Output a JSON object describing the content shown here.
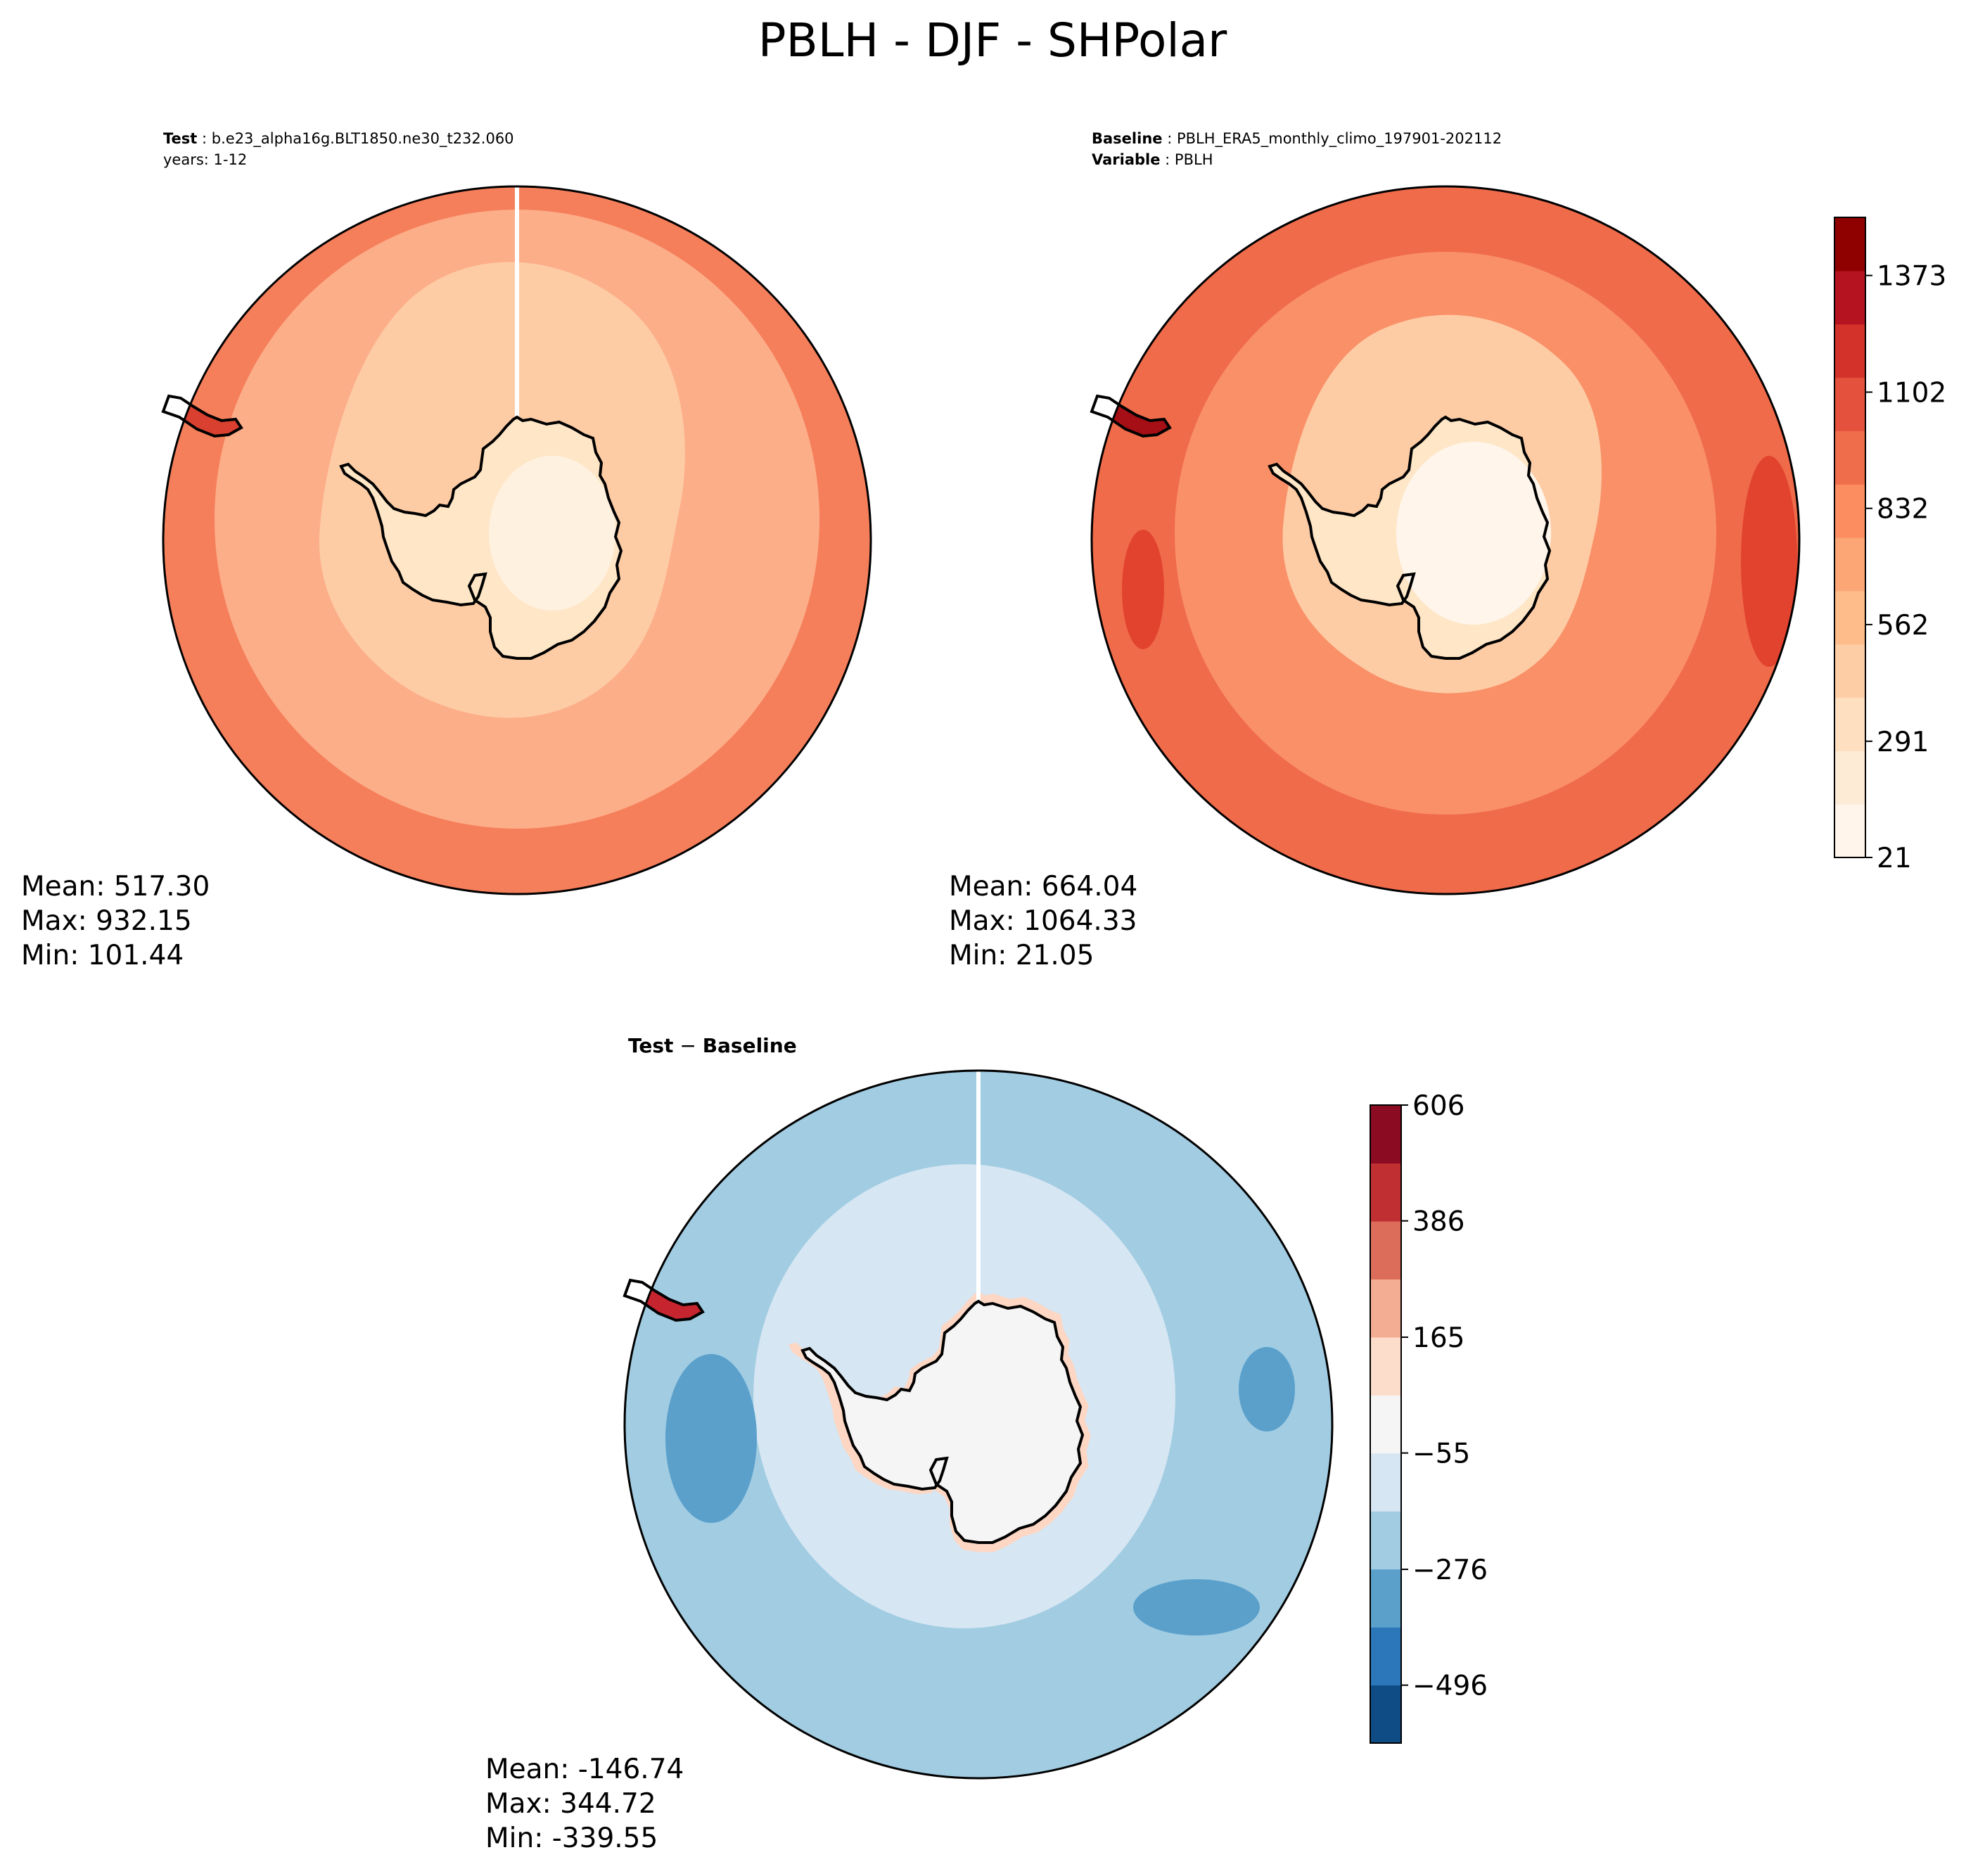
{
  "title": "PBLH - DJF - SHPolar",
  "panels": {
    "test": {
      "label1": "Test",
      "case": "b.e23_alpha16g.BLT1850.ne30_t232.060",
      "years": "years: 1-12",
      "stats": {
        "mean": "Mean: 517.30",
        "max": "Max: 932.15",
        "min": "Min: 101.44"
      },
      "levels": {
        "outer": "#f67f5b",
        "mid": "#fcae89",
        "inner": "#fdcca5",
        "land": "#fee6c7",
        "core": "#fff1e0",
        "hot": "#d9402f"
      }
    },
    "baseline": {
      "label1": "Baseline",
      "case": "PBLH_ERA5_monthly_climo_197901-202112",
      "label2": "Variable",
      "variable": "PBLH",
      "stats": {
        "mean": "Mean: 664.04",
        "max": "Max: 1064.33",
        "min": "Min: 21.05"
      },
      "levels": {
        "outer": "#f06b4a",
        "mid": "#fa9068",
        "inner": "#fdcca5",
        "land": "#fee6c7",
        "core": "#fff5eb",
        "hot": "#e2432e"
      }
    },
    "diff": {
      "title_a": "Test",
      "title_b": "Baseline",
      "title_sep": " − ",
      "stats": {
        "mean": "Mean: -146.74",
        "max": "Max: 344.72",
        "min": "Min: -339.55"
      },
      "levels": {
        "outer": "#a1cce2",
        "mid": "#d6e6f2",
        "deep": "#5aa0cb",
        "land": "#f5f5f5",
        "edge": "#fdd7c4",
        "hot": "#c6242e"
      }
    }
  },
  "colorbar_main": {
    "colors": [
      "#fff5eb",
      "#feebd6",
      "#fee0c0",
      "#fdcea6",
      "#fdbc8a",
      "#fca676",
      "#fb8d60",
      "#f06d4b",
      "#e4523d",
      "#d3322a",
      "#b61320",
      "#8f0000"
    ],
    "tick_values": [
      21,
      291,
      562,
      832,
      1102,
      1373
    ],
    "tick_labels": [
      "21",
      "291",
      "562",
      "832",
      "1102",
      "1373"
    ],
    "range": [
      21,
      1508
    ]
  },
  "colorbar_diff": {
    "colors": [
      "#0f4c85",
      "#2b77ba",
      "#5aa0cb",
      "#a1cce2",
      "#d6e6f2",
      "#f5f5f5",
      "#fcdcca",
      "#f3ad92",
      "#db6d5a",
      "#c03033",
      "#8b0b23"
    ],
    "tick_values": [
      -496,
      -276,
      -55,
      165,
      386,
      606
    ],
    "tick_labels": [
      "−496",
      "−276",
      "−55",
      "165",
      "386",
      "606"
    ],
    "range": [
      -606,
      606
    ]
  }
}
